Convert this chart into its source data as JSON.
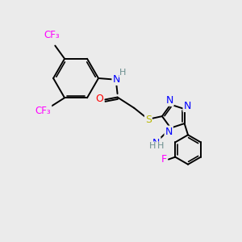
{
  "bg_color": "#ebebeb",
  "atom_colors": {
    "C": "#000000",
    "H": "#6b8e8e",
    "N": "#0000ff",
    "O": "#ff0000",
    "F": "#ff00ff",
    "S": "#b8b800"
  },
  "bond_color": "#000000",
  "bond_width": 1.4,
  "figsize": [
    3.0,
    3.0
  ],
  "dpi": 100,
  "xlim": [
    0,
    10
  ],
  "ylim": [
    0,
    10
  ]
}
